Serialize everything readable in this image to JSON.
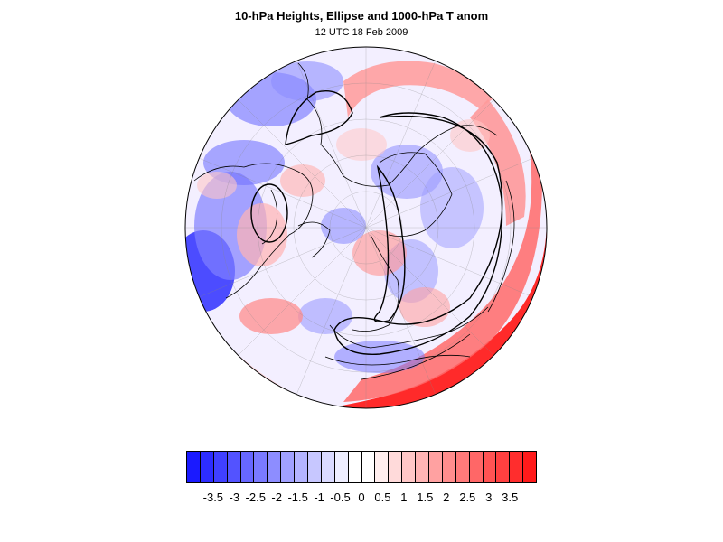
{
  "header": {
    "title": "10-hPa Heights, Ellipse and 1000-hPa T anom",
    "subtitle": "12 UTC 18 Feb 2009"
  },
  "map": {
    "projection": "polar-stereographic-north",
    "features": [
      "coastlines",
      "lat-lon-grid",
      "temperature-anomaly-shading",
      "polar-vortex-ellipse",
      "10-hPa-height-contours"
    ]
  },
  "colorbar": {
    "labels": [
      "-3.5",
      "-3",
      "-2.5",
      "-2",
      "-1.5",
      "-1",
      "-0.5",
      "0",
      "0.5",
      "1",
      "1.5",
      "2",
      "2.5",
      "3",
      "3.5"
    ],
    "colors": [
      "#1a1aff",
      "#2d2dff",
      "#4040ff",
      "#5353ff",
      "#6767ff",
      "#7a7aff",
      "#8d8dff",
      "#a1a1ff",
      "#b4b4ff",
      "#c7c7ff",
      "#dadaff",
      "#eeeeff",
      "#ffffff",
      "#ffffff",
      "#ffeeee",
      "#ffdada",
      "#ffc7c7",
      "#ffb4b4",
      "#ffa1a1",
      "#ff8d8d",
      "#ff7a7a",
      "#ff6767",
      "#ff5353",
      "#ff4040",
      "#ff2d2d",
      "#ff1a1a"
    ]
  }
}
